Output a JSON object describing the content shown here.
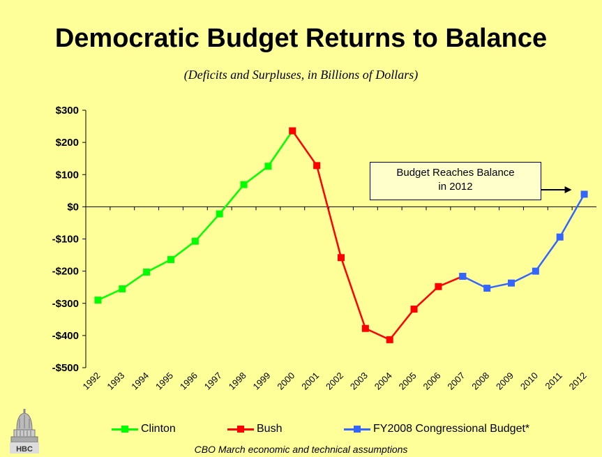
{
  "chart_data": {
    "type": "line",
    "title": "Democratic Budget Returns to Balance",
    "subtitle": "(Deficits and Surpluses, in Billions of Dollars)",
    "xlabel": "",
    "ylabel": "",
    "ylim": [
      -500,
      300
    ],
    "yticks": [
      300,
      200,
      100,
      0,
      -100,
      -200,
      -300,
      -400,
      -500
    ],
    "ytick_labels": [
      "$300",
      "$200",
      "$100",
      "$0",
      "-$100",
      "-$200",
      "-$300",
      "-$400",
      "-$500"
    ],
    "categories": [
      "1992",
      "1993",
      "1994",
      "1995",
      "1996",
      "1997",
      "1998",
      "1999",
      "2000",
      "2001",
      "2002",
      "2003",
      "2004",
      "2005",
      "2006",
      "2007",
      "2008",
      "2009",
      "2010",
      "2011",
      "2012"
    ],
    "series": [
      {
        "name": "Clinton",
        "color": "#00ff00",
        "x": [
          "1992",
          "1993",
          "1994",
          "1995",
          "1996",
          "1997",
          "1998",
          "1999",
          "2000"
        ],
        "values": [
          -290,
          -255,
          -203,
          -164,
          -107,
          -22,
          69,
          126,
          236
        ]
      },
      {
        "name": "Bush",
        "color": "#ff0000",
        "x": [
          "2000",
          "2001",
          "2002",
          "2003",
          "2004",
          "2005",
          "2006",
          "2007"
        ],
        "values": [
          236,
          128,
          -158,
          -378,
          -413,
          -318,
          -248,
          -216
        ]
      },
      {
        "name": "FY2008 Congressional Budget*",
        "color": "#3366ff",
        "x": [
          "2007",
          "2008",
          "2009",
          "2010",
          "2011",
          "2012"
        ],
        "values": [
          -216,
          -253,
          -237,
          -200,
          -94,
          39
        ]
      }
    ],
    "annotation": {
      "text_line1": "Budget Reaches Balance",
      "text_line2": "in 2012"
    },
    "legend_position": "bottom",
    "grid": false
  },
  "footnote": "CBO March economic and technical assumptions",
  "logo": {
    "icon": "capitol-dome-icon",
    "text": "HBC"
  }
}
